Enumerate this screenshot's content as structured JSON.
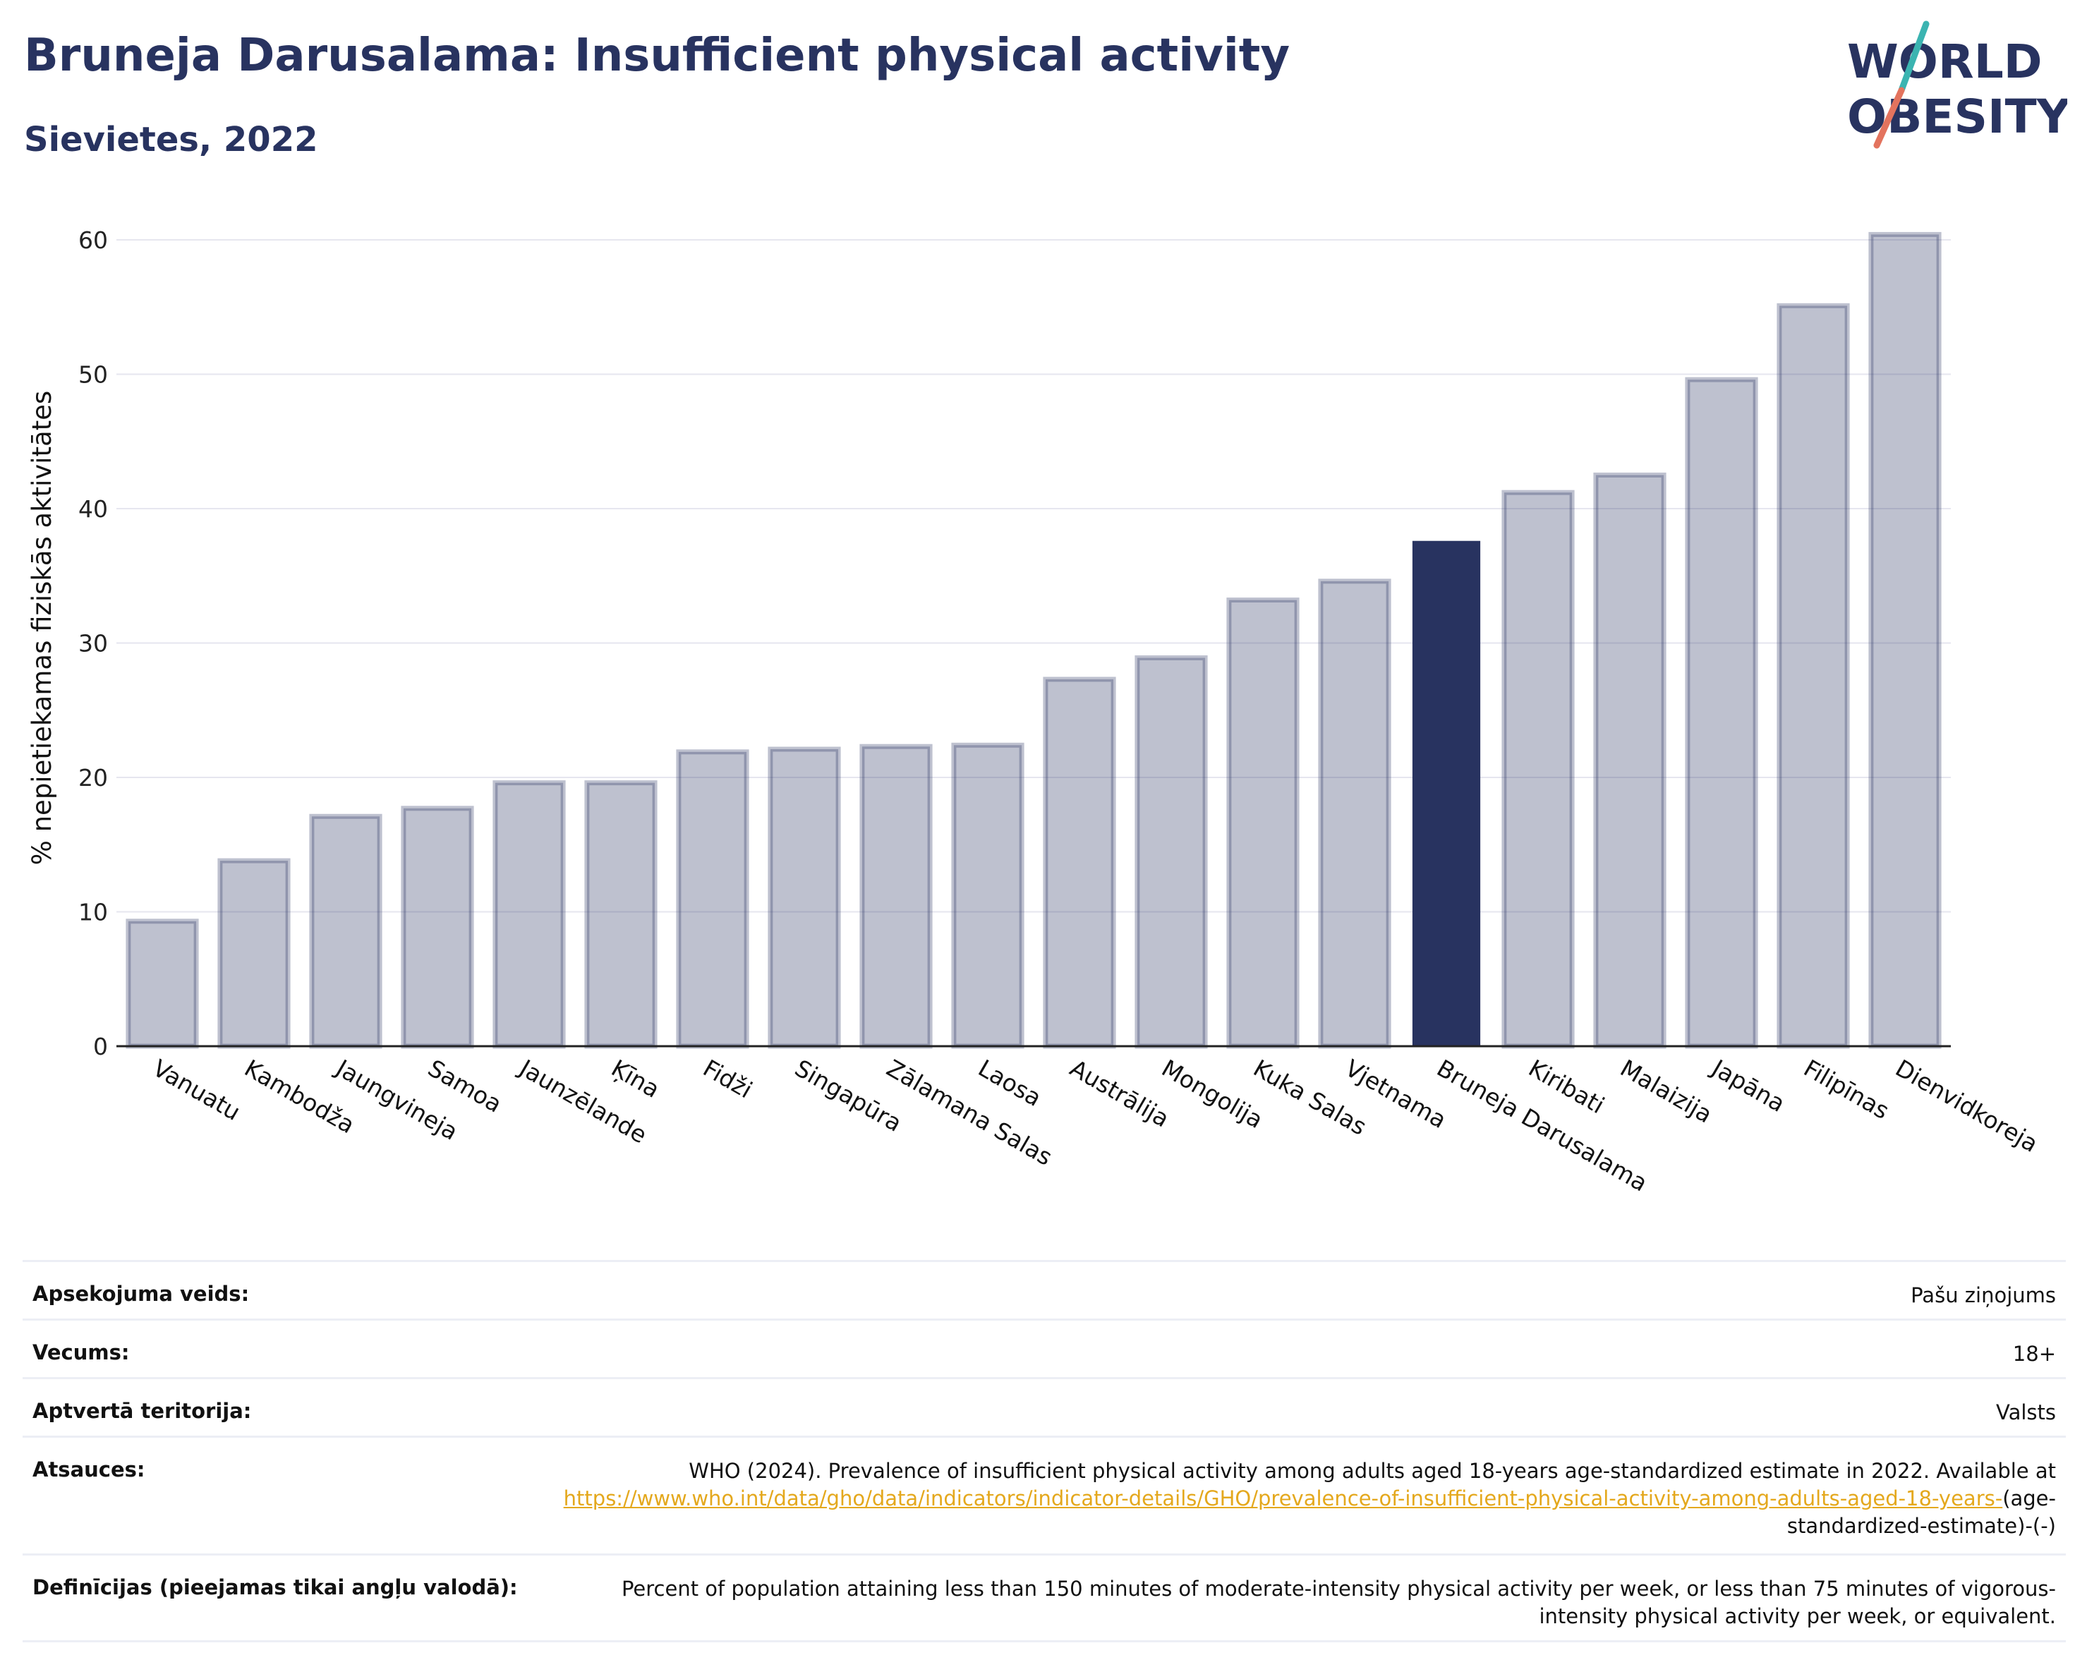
{
  "header": {
    "title": "Bruneja Darusalama: Insufficient physical activity",
    "subtitle": "Sievietes, 2022"
  },
  "logo": {
    "line1": "WORLD",
    "line2": "OBESITY",
    "color_text": "#283360",
    "color_slash_top": "#3bb4b1",
    "color_slash_bottom": "#e3735e"
  },
  "colors": {
    "bar_default": "#283360",
    "bar_highlight": "#283360",
    "grid": "#e6e6ef",
    "axis": "#222222"
  },
  "chart_data": {
    "type": "bar",
    "title": "",
    "xlabel": "",
    "ylabel": "% nepietiekamas fiziskās aktivitātes",
    "ylim": [
      0,
      63
    ],
    "yticks": [
      0,
      10,
      20,
      30,
      40,
      50,
      60
    ],
    "grid": true,
    "highlight": "Bruneja Darusalama",
    "categories": [
      "Vanuatu",
      "Kambodža",
      "Jaungvineja",
      "Samoa",
      "Jaunzēlande",
      "Ķīna",
      "Fidži",
      "Singapūra",
      "Zālamana Salas",
      "Laosa",
      "Austrālija",
      "Mongolija",
      "Kuka Salas",
      "Vjetnama",
      "Bruneja Darusalama",
      "Kiribati",
      "Malaizija",
      "Japāna",
      "Filipīnas",
      "Dienvidkoreja"
    ],
    "values": [
      9.3,
      13.8,
      17.1,
      17.7,
      19.6,
      19.6,
      21.9,
      22.1,
      22.3,
      22.4,
      27.3,
      28.9,
      33.2,
      34.6,
      37.6,
      41.2,
      42.5,
      49.6,
      55.1,
      60.4
    ]
  },
  "info": [
    {
      "label": "Apsekojuma veids:",
      "value": "Pašu ziņojums"
    },
    {
      "label": "Vecums:",
      "value": "18+"
    },
    {
      "label": "Aptvertā teritorija:",
      "value": "Valsts"
    },
    {
      "label": "Atsauces:",
      "value_text": "WHO (2024). Prevalence of insufficient physical activity among adults aged 18-years age-standardized estimate in 2022. Available at",
      "value_link": "https://www.who.int/data/gho/data/indicators/indicator-details/GHO/prevalence-of-insufficient-physical-activity-among-adults-aged-18-years-",
      "value_suffix": "(age-standardized-estimate)-(-)"
    },
    {
      "label": "Definīcijas (pieejamas tikai angļu valodā):",
      "value": "Percent of population attaining less than 150 minutes of moderate-intensity physical activity per week, or less than 75 minutes of vigorous-intensity physical activity per week, or equivalent."
    }
  ]
}
